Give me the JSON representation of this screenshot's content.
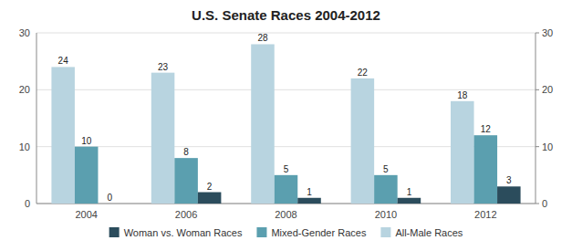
{
  "chart_data": {
    "type": "bar",
    "title": "U.S. Senate Races 2004-2012",
    "categories": [
      "2004",
      "2006",
      "2008",
      "2010",
      "2012"
    ],
    "series": [
      {
        "name": "All-Male Races",
        "color": "#b8d4e0",
        "values": [
          24,
          23,
          28,
          22,
          18
        ]
      },
      {
        "name": "Mixed-Gender Races",
        "color": "#5b9faf",
        "values": [
          10,
          8,
          5,
          5,
          12
        ]
      },
      {
        "name": "Woman vs. Woman Races",
        "color": "#2b4c5c",
        "values": [
          0,
          2,
          1,
          1,
          3
        ]
      }
    ],
    "ylim": [
      0,
      30
    ],
    "yticks": [
      0,
      10,
      20,
      30
    ],
    "y2lim": [
      0,
      30
    ],
    "y2ticks": [
      0,
      10,
      20,
      30
    ],
    "grid": true,
    "data_labels": true,
    "legend": "bottom"
  }
}
